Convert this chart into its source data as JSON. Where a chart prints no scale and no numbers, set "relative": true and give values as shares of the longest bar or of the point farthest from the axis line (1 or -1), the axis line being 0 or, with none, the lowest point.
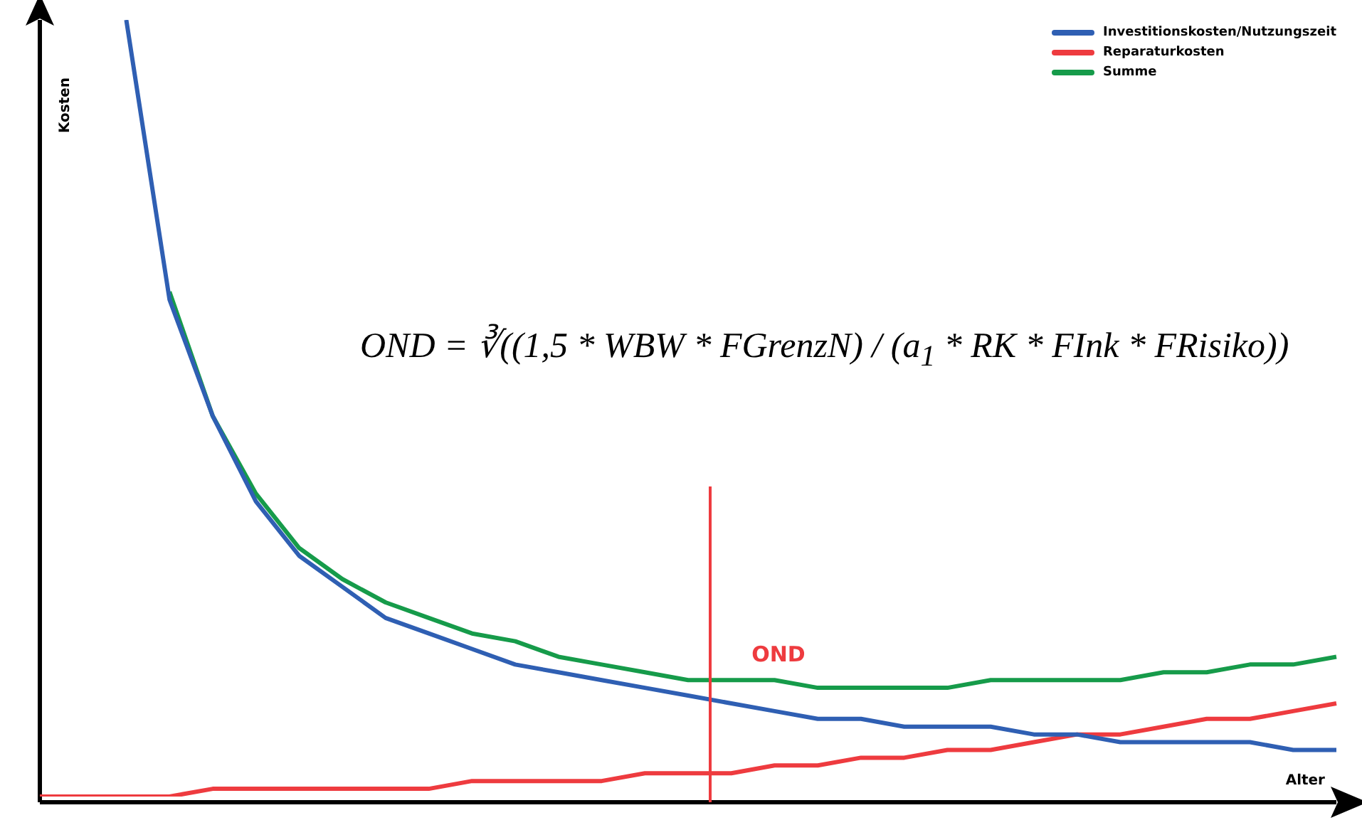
{
  "chart_data": {
    "type": "line",
    "relative": true,
    "xlabel": "Alter",
    "ylabel": "Kosten",
    "legend": "top right",
    "marker": "none",
    "line_style": "solid",
    "categories": [
      null,
      null,
      null,
      null,
      null,
      null,
      null,
      null,
      null,
      null,
      null,
      null,
      null,
      null,
      null,
      null,
      null,
      null,
      null,
      null,
      null,
      null,
      null,
      null,
      null,
      null,
      null,
      null,
      null,
      null,
      null
    ],
    "series": [
      {
        "name": "Investitionskosten/Nutzungszeit",
        "color": "#2f5fb3",
        "values": [
          null,
          null,
          1,
          0.64,
          0.49,
          0.38,
          0.31,
          0.27,
          0.23,
          0.21,
          0.19,
          0.17,
          0.16,
          0.15,
          0.14,
          0.13,
          0.12,
          0.11,
          0.1,
          0.1,
          0.09,
          0.09,
          0.09,
          0.08,
          0.08,
          0.07,
          0.07,
          0.07,
          0.07,
          0.06,
          0.06
        ]
      },
      {
        "name": "Reparaturkosten",
        "color": "#ee3b3f",
        "values": [
          0,
          0,
          0,
          0,
          0.01,
          0.01,
          0.01,
          0.01,
          0.01,
          0.01,
          0.02,
          0.02,
          0.02,
          0.02,
          0.03,
          0.03,
          0.03,
          0.04,
          0.04,
          0.05,
          0.05,
          0.06,
          0.06,
          0.07,
          0.08,
          0.08,
          0.09,
          0.1,
          0.1,
          0.11,
          0.12
        ]
      },
      {
        "name": "Summe",
        "color": "#169b4a",
        "values": [
          null,
          null,
          null,
          0.65,
          0.49,
          0.39,
          0.32,
          0.28,
          0.25,
          0.23,
          0.21,
          0.2,
          0.18,
          0.17,
          0.16,
          0.15,
          0.15,
          0.15,
          0.14,
          0.14,
          0.14,
          0.14,
          0.15,
          0.15,
          0.15,
          0.15,
          0.16,
          0.16,
          0.17,
          0.17,
          0.18
        ]
      }
    ],
    "annotations": [
      "OND = ∛((1,5 * WBW * FGrenzN) / (a$_{1}$ * RK * FInk * FRisiko))",
      "OND"
    ]
  }
}
